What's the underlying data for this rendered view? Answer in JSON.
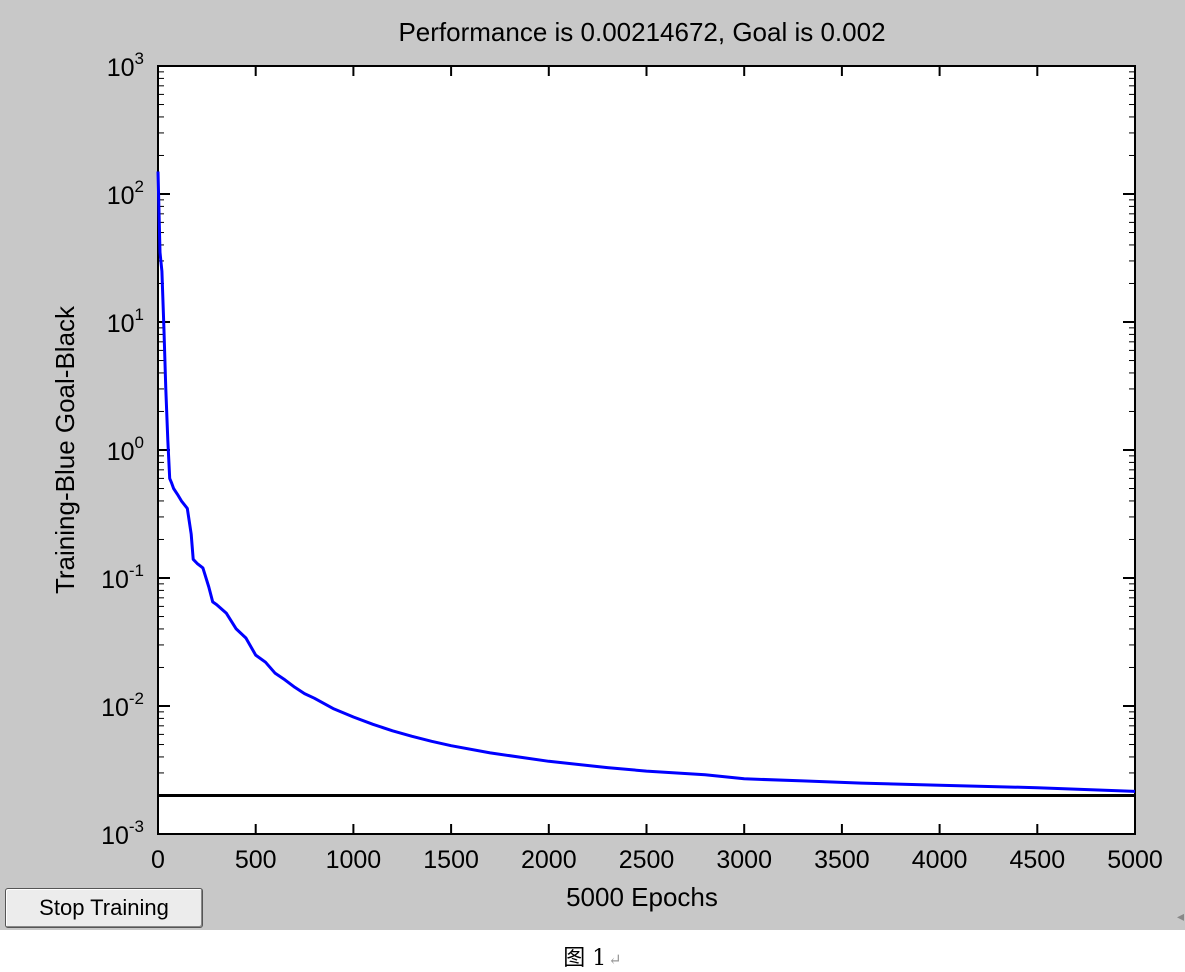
{
  "figure": {
    "stop_button_label": "Stop Training",
    "caption": "图 1",
    "caption_mark": "↵",
    "edge_mark": "◂"
  },
  "chart_data": {
    "type": "line",
    "title": "Performance is 0.00214672, Goal is 0.002",
    "xlabel": "5000 Epochs",
    "ylabel": "Training-Blue  Goal-Black",
    "xlim": [
      0,
      5000
    ],
    "ylim": [
      0.001,
      1000
    ],
    "yscale": "log",
    "grid": false,
    "x_ticks": [
      "0",
      "500",
      "1000",
      "1500",
      "2000",
      "2500",
      "3000",
      "3500",
      "4000",
      "4500",
      "5000"
    ],
    "y_ticks": [
      {
        "base": "10",
        "exp": "-3"
      },
      {
        "base": "10",
        "exp": "-2"
      },
      {
        "base": "10",
        "exp": "-1"
      },
      {
        "base": "10",
        "exp": "0"
      },
      {
        "base": "10",
        "exp": "1"
      },
      {
        "base": "10",
        "exp": "2"
      },
      {
        "base": "10",
        "exp": "3"
      }
    ],
    "series": [
      {
        "color": "#0000ff",
        "x": [
          0,
          10,
          20,
          30,
          40,
          50,
          60,
          70,
          80,
          100,
          120,
          150,
          170,
          180,
          200,
          230,
          260,
          280,
          300,
          350,
          400,
          450,
          500,
          550,
          600,
          650,
          700,
          750,
          800,
          900,
          1000,
          1100,
          1200,
          1300,
          1400,
          1500,
          1700,
          2000,
          2300,
          2500,
          2800,
          3000,
          3300,
          3600,
          4000,
          4500,
          5000
        ],
        "y": [
          150,
          35,
          25,
          9,
          3,
          1.2,
          0.6,
          0.55,
          0.5,
          0.45,
          0.4,
          0.35,
          0.22,
          0.14,
          0.13,
          0.12,
          0.085,
          0.065,
          0.062,
          0.053,
          0.04,
          0.034,
          0.025,
          0.022,
          0.018,
          0.016,
          0.014,
          0.0125,
          0.0115,
          0.0095,
          0.0082,
          0.0072,
          0.0064,
          0.0058,
          0.0053,
          0.0049,
          0.0043,
          0.0037,
          0.0033,
          0.0031,
          0.0029,
          0.0027,
          0.0026,
          0.0025,
          0.0024,
          0.0023,
          0.00215
        ]
      },
      {
        "color": "#000000",
        "x": [
          0,
          5000
        ],
        "y": [
          0.002,
          0.002
        ]
      }
    ]
  }
}
